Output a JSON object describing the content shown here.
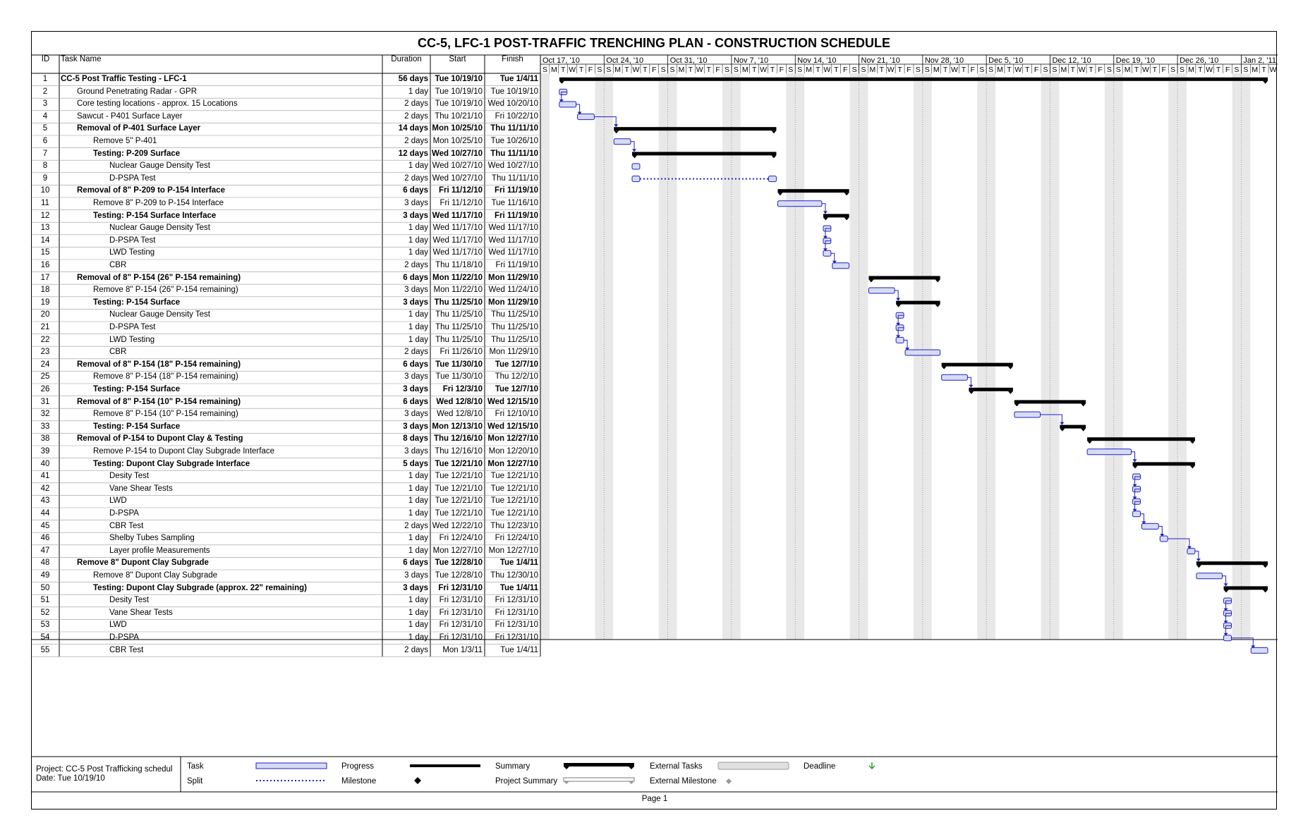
{
  "title": "CC-5, LFC-1 POST-TRAFFIC TRENCHING PLAN - CONSTRUCTION SCHEDULE",
  "columns": {
    "id": "ID",
    "name": "Task Name",
    "duration": "Duration",
    "start": "Start",
    "finish": "Finish"
  },
  "weeks": [
    "Oct 17, '10",
    "Oct 24, '10",
    "Oct 31, '10",
    "Nov 7, '10",
    "Nov 14, '10",
    "Nov 21, '10",
    "Nov 28, '10",
    "Dec 5, '10",
    "Dec 12, '10",
    "Dec 19, '10",
    "Dec 26, '10",
    "Jan 2, '11"
  ],
  "day_letters": [
    "S",
    "M",
    "T",
    "W",
    "T",
    "F",
    "S"
  ],
  "timeline": {
    "start_date": "2010-10-17",
    "days": 81
  },
  "tasks": [
    {
      "id": "1",
      "name": "CC-5 Post Traffic Testing - LFC-1",
      "duration": "56 days",
      "start": "Tue 10/19/10",
      "finish": "Tue 1/4/11",
      "level": 0,
      "type": "summary"
    },
    {
      "id": "2",
      "name": "Ground Penetrating  Radar - GPR",
      "duration": "1 day",
      "start": "Tue 10/19/10",
      "finish": "Tue 10/19/10",
      "level": 1,
      "type": "task"
    },
    {
      "id": "3",
      "name": "Core testing locations - approx. 15 Locations",
      "duration": "2 days",
      "start": "Tue 10/19/10",
      "finish": "Wed 10/20/10",
      "level": 1,
      "type": "task"
    },
    {
      "id": "4",
      "name": "Sawcut - P401 Surface Layer",
      "duration": "2 days",
      "start": "Thu 10/21/10",
      "finish": "Fri 10/22/10",
      "level": 1,
      "type": "task"
    },
    {
      "id": "5",
      "name": "Removal of P-401 Surface Layer",
      "duration": "14 days",
      "start": "Mon 10/25/10",
      "finish": "Thu 11/11/10",
      "level": 1,
      "type": "summary"
    },
    {
      "id": "6",
      "name": "Remove 5\" P-401",
      "duration": "2 days",
      "start": "Mon 10/25/10",
      "finish": "Tue 10/26/10",
      "level": 2,
      "type": "task"
    },
    {
      "id": "7",
      "name": "Testing:  P-209 Surface",
      "duration": "12 days",
      "start": "Wed 10/27/10",
      "finish": "Thu 11/11/10",
      "level": 2,
      "type": "summary"
    },
    {
      "id": "8",
      "name": "Nuclear Gauge Density Test",
      "duration": "1 day",
      "start": "Wed 10/27/10",
      "finish": "Wed 10/27/10",
      "level": 3,
      "type": "task"
    },
    {
      "id": "9",
      "name": "D-PSPA Test",
      "duration": "2 days",
      "start": "Wed 10/27/10",
      "finish": "Thu 11/11/10",
      "level": 3,
      "type": "split"
    },
    {
      "id": "10",
      "name": "Removal of 8\" P-209 to P-154 Interface",
      "duration": "6 days",
      "start": "Fri 11/12/10",
      "finish": "Fri 11/19/10",
      "level": 1,
      "type": "summary"
    },
    {
      "id": "11",
      "name": "Remove 8\" P-209 to P-154 Interface",
      "duration": "3 days",
      "start": "Fri 11/12/10",
      "finish": "Tue 11/16/10",
      "level": 2,
      "type": "task"
    },
    {
      "id": "12",
      "name": "Testing:  P-154 Surface Interface",
      "duration": "3 days",
      "start": "Wed 11/17/10",
      "finish": "Fri 11/19/10",
      "level": 2,
      "type": "summary"
    },
    {
      "id": "13",
      "name": "Nuclear Gauge Density Test",
      "duration": "1 day",
      "start": "Wed 11/17/10",
      "finish": "Wed 11/17/10",
      "level": 3,
      "type": "task"
    },
    {
      "id": "14",
      "name": "D-PSPA Test",
      "duration": "1 day",
      "start": "Wed 11/17/10",
      "finish": "Wed 11/17/10",
      "level": 3,
      "type": "task"
    },
    {
      "id": "15",
      "name": "LWD Testing",
      "duration": "1 day",
      "start": "Wed 11/17/10",
      "finish": "Wed 11/17/10",
      "level": 3,
      "type": "task"
    },
    {
      "id": "16",
      "name": "CBR",
      "duration": "2 days",
      "start": "Thu 11/18/10",
      "finish": "Fri 11/19/10",
      "level": 3,
      "type": "task"
    },
    {
      "id": "17",
      "name": "Removal of 8\" P-154     (26\" P-154  remaining)",
      "duration": "6 days",
      "start": "Mon 11/22/10",
      "finish": "Mon 11/29/10",
      "level": 1,
      "type": "summary"
    },
    {
      "id": "18",
      "name": "Remove 8\" P-154     (26\" P-154  remaining)",
      "duration": "3 days",
      "start": "Mon 11/22/10",
      "finish": "Wed 11/24/10",
      "level": 2,
      "type": "task"
    },
    {
      "id": "19",
      "name": "Testing:  P-154 Surface",
      "duration": "3 days",
      "start": "Thu 11/25/10",
      "finish": "Mon 11/29/10",
      "level": 2,
      "type": "summary"
    },
    {
      "id": "20",
      "name": "Nuclear Gauge Density Test",
      "duration": "1 day",
      "start": "Thu 11/25/10",
      "finish": "Thu 11/25/10",
      "level": 3,
      "type": "task"
    },
    {
      "id": "21",
      "name": "D-PSPA Test",
      "duration": "1 day",
      "start": "Thu 11/25/10",
      "finish": "Thu 11/25/10",
      "level": 3,
      "type": "task"
    },
    {
      "id": "22",
      "name": "LWD Testing",
      "duration": "1 day",
      "start": "Thu 11/25/10",
      "finish": "Thu 11/25/10",
      "level": 3,
      "type": "task"
    },
    {
      "id": "23",
      "name": "CBR",
      "duration": "2 days",
      "start": "Fri 11/26/10",
      "finish": "Mon 11/29/10",
      "level": 3,
      "type": "task"
    },
    {
      "id": "24",
      "name": "Removal of 8\" P-154     (18\" P-154 remaining)",
      "duration": "6 days",
      "start": "Tue 11/30/10",
      "finish": "Tue 12/7/10",
      "level": 1,
      "type": "summary"
    },
    {
      "id": "25",
      "name": "Remove 8\" P-154     (18\" P-154 remaining)",
      "duration": "3 days",
      "start": "Tue 11/30/10",
      "finish": "Thu 12/2/10",
      "level": 2,
      "type": "task"
    },
    {
      "id": "26",
      "name": "Testing:  P-154 Surface",
      "duration": "3 days",
      "start": "Fri 12/3/10",
      "finish": "Tue 12/7/10",
      "level": 2,
      "type": "summary"
    },
    {
      "id": "31",
      "name": "Removal of 8\" P-154     (10\" P-154 remaining)",
      "duration": "6 days",
      "start": "Wed 12/8/10",
      "finish": "Wed 12/15/10",
      "level": 1,
      "type": "summary"
    },
    {
      "id": "32",
      "name": "Remove 8\" P-154     (10\" P-154 remaining)",
      "duration": "3 days",
      "start": "Wed 12/8/10",
      "finish": "Fri 12/10/10",
      "level": 2,
      "type": "task"
    },
    {
      "id": "33",
      "name": "Testing:  P-154 Surface",
      "duration": "3 days",
      "start": "Mon 12/13/10",
      "finish": "Wed 12/15/10",
      "level": 2,
      "type": "summary"
    },
    {
      "id": "38",
      "name": "Removal of  P-154 to Dupont Clay  & Testing",
      "duration": "8 days",
      "start": "Thu 12/16/10",
      "finish": "Mon 12/27/10",
      "level": 1,
      "type": "summary"
    },
    {
      "id": "39",
      "name": "Remove P-154 to Dupont Clay Subgrade Interface",
      "duration": "3 days",
      "start": "Thu 12/16/10",
      "finish": "Mon 12/20/10",
      "level": 2,
      "type": "task"
    },
    {
      "id": "40",
      "name": "Testing:  Dupont Clay Subgrade Interface",
      "duration": "5 days",
      "start": "Tue 12/21/10",
      "finish": "Mon 12/27/10",
      "level": 2,
      "type": "summary"
    },
    {
      "id": "41",
      "name": "Desity Test",
      "duration": "1 day",
      "start": "Tue 12/21/10",
      "finish": "Tue 12/21/10",
      "level": 3,
      "type": "task"
    },
    {
      "id": "42",
      "name": "Vane Shear Tests",
      "duration": "1 day",
      "start": "Tue 12/21/10",
      "finish": "Tue 12/21/10",
      "level": 3,
      "type": "task"
    },
    {
      "id": "43",
      "name": "LWD",
      "duration": "1 day",
      "start": "Tue 12/21/10",
      "finish": "Tue 12/21/10",
      "level": 3,
      "type": "task"
    },
    {
      "id": "44",
      "name": "D-PSPA",
      "duration": "1 day",
      "start": "Tue 12/21/10",
      "finish": "Tue 12/21/10",
      "level": 3,
      "type": "task"
    },
    {
      "id": "45",
      "name": "CBR Test",
      "duration": "2 days",
      "start": "Wed 12/22/10",
      "finish": "Thu 12/23/10",
      "level": 3,
      "type": "task"
    },
    {
      "id": "46",
      "name": "Shelby Tubes Sampling",
      "duration": "1 day",
      "start": "Fri 12/24/10",
      "finish": "Fri 12/24/10",
      "level": 3,
      "type": "task"
    },
    {
      "id": "47",
      "name": "Layer profile Measurements",
      "duration": "1 day",
      "start": "Mon 12/27/10",
      "finish": "Mon 12/27/10",
      "level": 3,
      "type": "task"
    },
    {
      "id": "48",
      "name": "Remove 8\" Dupont Clay Subgrade",
      "duration": "6 days",
      "start": "Tue 12/28/10",
      "finish": "Tue 1/4/11",
      "level": 1,
      "type": "summary"
    },
    {
      "id": "49",
      "name": "Remove 8\" Dupont Clay Subgrade",
      "duration": "3 days",
      "start": "Tue 12/28/10",
      "finish": "Thu 12/30/10",
      "level": 2,
      "type": "task"
    },
    {
      "id": "50",
      "name": "Testing:  Dupont Clay Subgrade     (approx. 22\" remaining)",
      "duration": "3 days",
      "start": "Fri 12/31/10",
      "finish": "Tue 1/4/11",
      "level": 2,
      "type": "summary"
    },
    {
      "id": "51",
      "name": "Desity Test",
      "duration": "1 day",
      "start": "Fri 12/31/10",
      "finish": "Fri 12/31/10",
      "level": 3,
      "type": "task"
    },
    {
      "id": "52",
      "name": "Vane Shear Tests",
      "duration": "1 day",
      "start": "Fri 12/31/10",
      "finish": "Fri 12/31/10",
      "level": 3,
      "type": "task"
    },
    {
      "id": "53",
      "name": "LWD",
      "duration": "1 day",
      "start": "Fri 12/31/10",
      "finish": "Fri 12/31/10",
      "level": 3,
      "type": "task"
    },
    {
      "id": "54",
      "name": "D-PSPA",
      "duration": "1 day",
      "start": "Fri 12/31/10",
      "finish": "Fri 12/31/10",
      "level": 3,
      "type": "task"
    },
    {
      "id": "55",
      "name": "CBR Test",
      "duration": "2 days",
      "start": "Mon 1/3/11",
      "finish": "Tue 1/4/11",
      "level": 3,
      "type": "task"
    }
  ],
  "legend": {
    "project": "Project: CC-5 Post Trafficking schedul",
    "date": "Date: Tue 10/19/10",
    "task": "Task",
    "split": "Split",
    "progress": "Progress",
    "milestone": "Milestone",
    "summary": "Summary",
    "project_summary": "Project Summary",
    "external_tasks": "External Tasks",
    "external_milestone": "External Milestone",
    "deadline": "Deadline"
  },
  "page": "Page 1",
  "colors": {
    "task": "#2020c0",
    "summary": "#000000",
    "weekend": "#e8e8e8"
  }
}
